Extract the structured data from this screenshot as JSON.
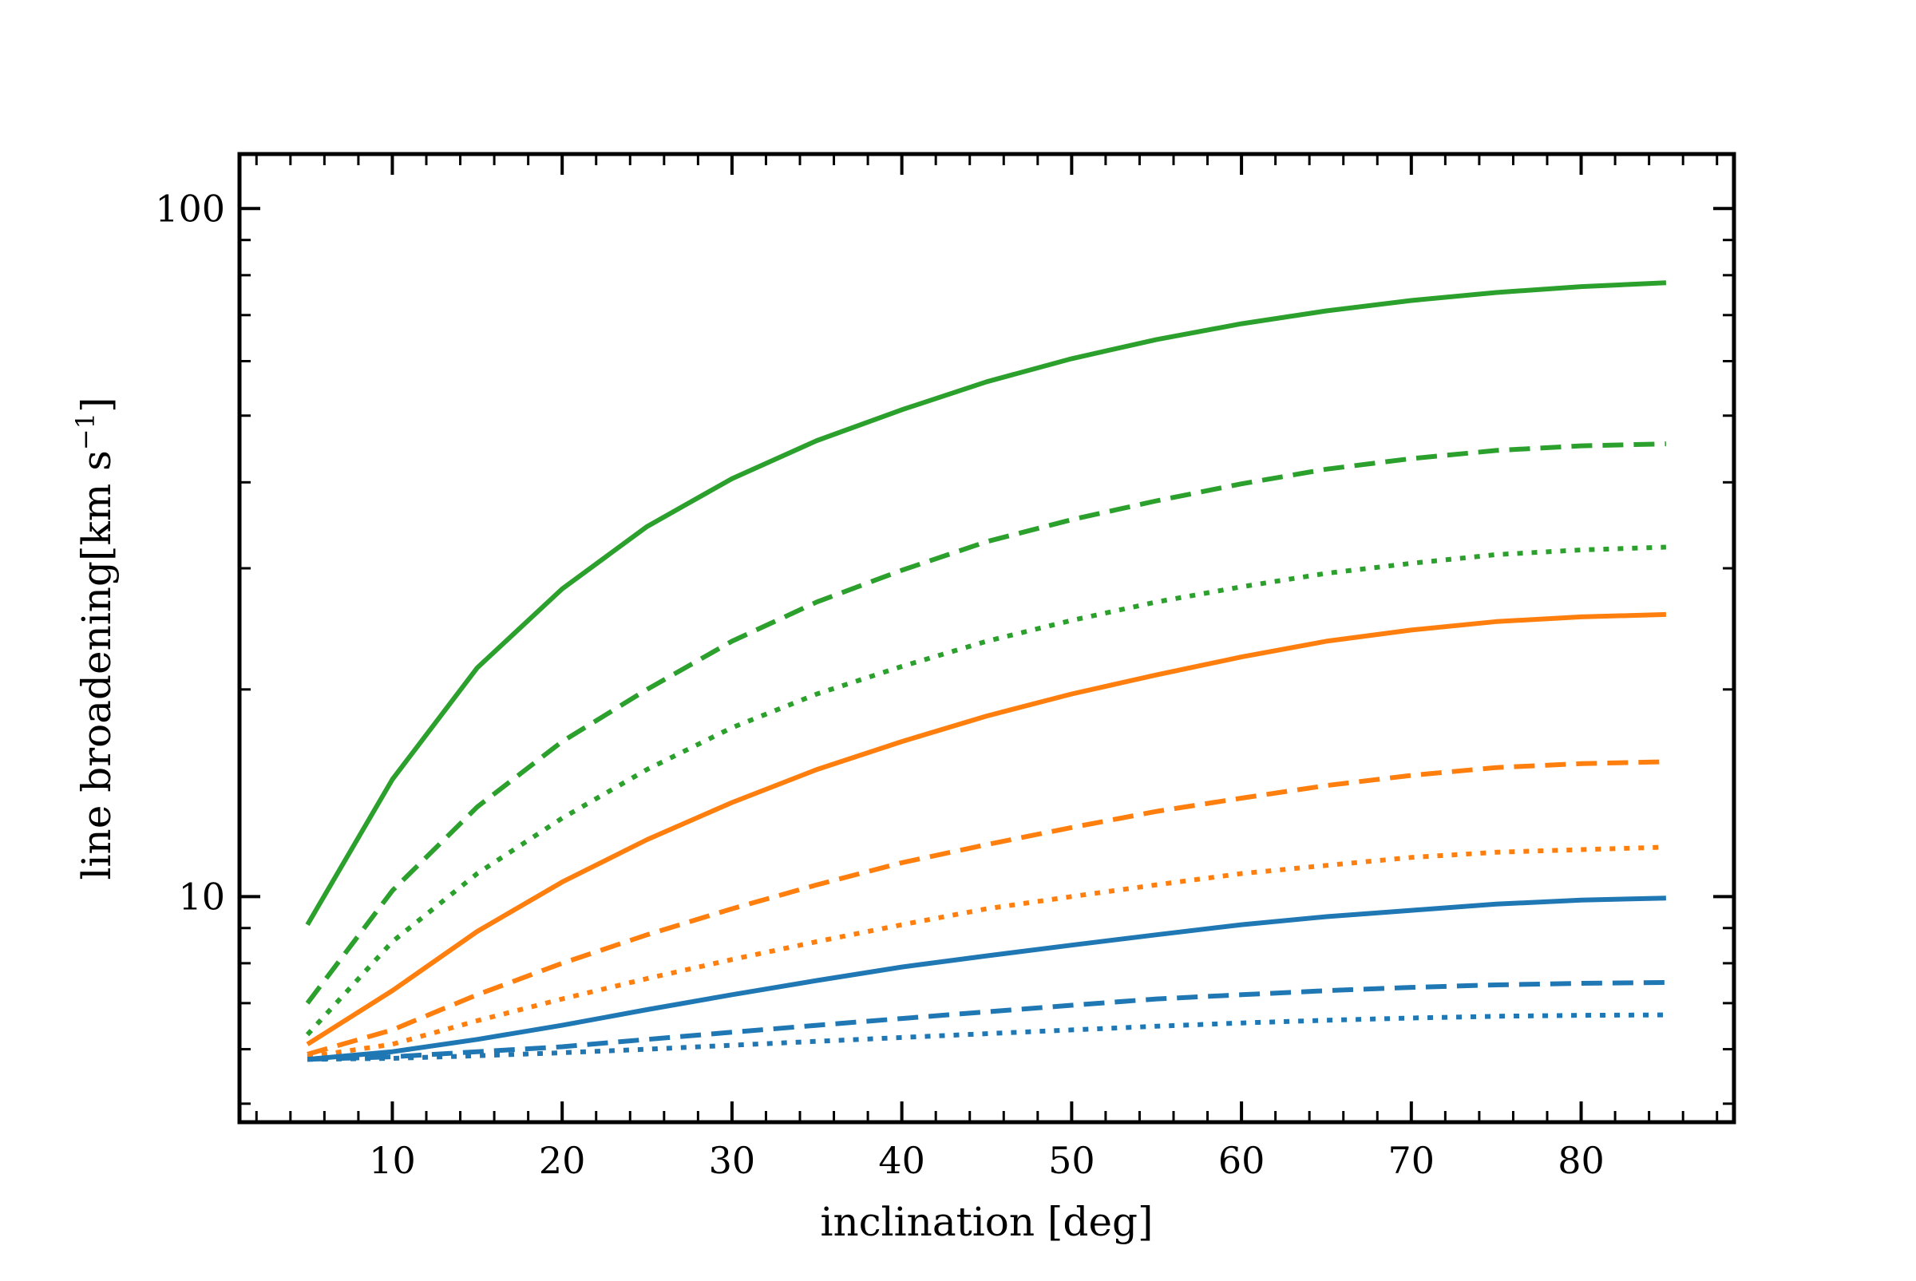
{
  "chart_data": {
    "type": "line",
    "title": "",
    "xlabel": "inclination [deg]",
    "ylabel_main": "line broadening[km s",
    "ylabel_sup": "−1",
    "ylabel_close": "]",
    "yscale": "log",
    "xlim": [
      1,
      89
    ],
    "ylim": [
      4.7,
      120
    ],
    "x_ticks": [
      10,
      20,
      30,
      40,
      50,
      60,
      70,
      80
    ],
    "x_tick_labels": [
      "10",
      "20",
      "30",
      "40",
      "50",
      "60",
      "70",
      "80"
    ],
    "y_ticks": [
      10,
      100
    ],
    "y_tick_labels": [
      "10",
      "100"
    ],
    "x": [
      5,
      10,
      15,
      20,
      25,
      30,
      35,
      40,
      45,
      50,
      55,
      60,
      65,
      70,
      75,
      80,
      85
    ],
    "series": [
      {
        "name": "green-solid",
        "color": "#2ca02c",
        "dash": "solid",
        "values": [
          9.1,
          14.8,
          21.5,
          28.0,
          34.5,
          40.5,
          46.0,
          51.0,
          56.0,
          60.5,
          64.5,
          68.0,
          71.0,
          73.5,
          75.5,
          77.0,
          78.0
        ]
      },
      {
        "name": "green-dashed",
        "color": "#2ca02c",
        "dash": "dashed",
        "values": [
          7.0,
          10.2,
          13.5,
          16.8,
          20.0,
          23.5,
          26.8,
          29.8,
          32.8,
          35.3,
          37.6,
          39.8,
          41.8,
          43.3,
          44.5,
          45.2,
          45.5
        ]
      },
      {
        "name": "green-dotted",
        "color": "#2ca02c",
        "dash": "dotted",
        "values": [
          6.3,
          8.6,
          10.8,
          13.0,
          15.3,
          17.6,
          19.7,
          21.6,
          23.5,
          25.2,
          26.8,
          28.2,
          29.5,
          30.5,
          31.4,
          31.9,
          32.2
        ]
      },
      {
        "name": "orange-solid",
        "color": "#ff7f0e",
        "dash": "solid",
        "values": [
          6.1,
          7.3,
          8.9,
          10.5,
          12.1,
          13.7,
          15.3,
          16.8,
          18.3,
          19.7,
          21.0,
          22.3,
          23.5,
          24.4,
          25.1,
          25.5,
          25.7
        ]
      },
      {
        "name": "orange-dashed",
        "color": "#ff7f0e",
        "dash": "dashed",
        "values": [
          5.9,
          6.4,
          7.2,
          8.0,
          8.8,
          9.6,
          10.4,
          11.2,
          11.9,
          12.6,
          13.3,
          13.9,
          14.5,
          15.0,
          15.4,
          15.6,
          15.7
        ]
      },
      {
        "name": "orange-dotted",
        "color": "#ff7f0e",
        "dash": "dotted",
        "values": [
          5.85,
          6.1,
          6.6,
          7.1,
          7.6,
          8.1,
          8.6,
          9.1,
          9.6,
          10.0,
          10.4,
          10.8,
          11.1,
          11.4,
          11.6,
          11.7,
          11.8
        ]
      },
      {
        "name": "blue-solid",
        "color": "#1f77b4",
        "dash": "solid",
        "values": [
          5.8,
          5.95,
          6.2,
          6.5,
          6.85,
          7.2,
          7.55,
          7.9,
          8.2,
          8.5,
          8.8,
          9.1,
          9.35,
          9.55,
          9.75,
          9.88,
          9.95
        ]
      },
      {
        "name": "blue-dashed",
        "color": "#1f77b4",
        "dash": "dashed",
        "values": [
          5.8,
          5.85,
          5.95,
          6.05,
          6.2,
          6.35,
          6.5,
          6.65,
          6.8,
          6.95,
          7.1,
          7.2,
          7.3,
          7.38,
          7.44,
          7.48,
          7.5
        ]
      },
      {
        "name": "blue-dotted",
        "color": "#1f77b4",
        "dash": "dotted",
        "values": [
          5.8,
          5.82,
          5.87,
          5.93,
          6.0,
          6.08,
          6.16,
          6.24,
          6.32,
          6.4,
          6.48,
          6.55,
          6.61,
          6.66,
          6.7,
          6.72,
          6.73
        ]
      }
    ]
  }
}
